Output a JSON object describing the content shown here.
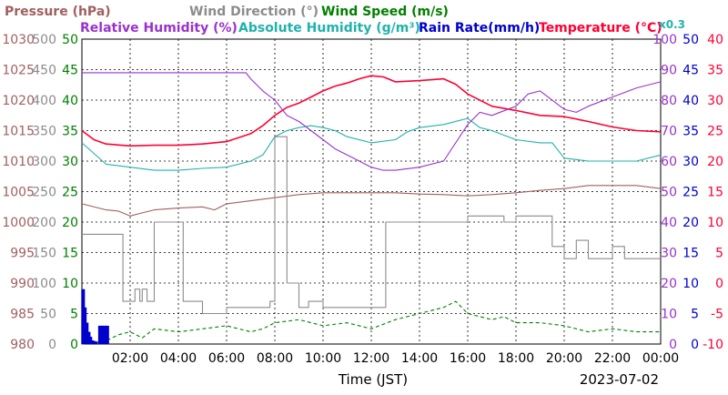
{
  "chart_data": {
    "type": "line",
    "x_axis": {
      "label": "Time (JST)",
      "date": "2023-07-02",
      "ticks": [
        "02:00",
        "04:00",
        "06:00",
        "08:00",
        "10:00",
        "12:00",
        "14:00",
        "16:00",
        "18:00",
        "20:00",
        "22:00",
        "00:00"
      ],
      "range_hours": [
        0,
        24
      ]
    },
    "grid": true,
    "legend": [
      {
        "name": "Pressure (hPa)",
        "color": "#a0605f"
      },
      {
        "name": "Wind Direction (°)",
        "color": "#8c8c8c"
      },
      {
        "name": "Wind Speed (m/s)",
        "color": "#008000"
      },
      {
        "name": "Relative Humidity (%)",
        "color": "#9932cc"
      },
      {
        "name": "Absolute Humidity (g/m³)",
        "color": "#20b2aa"
      },
      {
        "name": "Rain Rate(mm/h)",
        "color": "#0000cd"
      },
      {
        "name": "Temperature (°C)",
        "color": "#ff0033"
      }
    ],
    "rain_scale_note": "x0.3",
    "axes": [
      {
        "id": "pressure",
        "color": "#a0605f",
        "ticks": [
          "980",
          "985",
          "990",
          "995",
          "1000",
          "1005",
          "1010",
          "1015",
          "1020",
          "1025",
          "1030"
        ],
        "range": [
          980,
          1030
        ]
      },
      {
        "id": "wind_direction",
        "color": "#8c8c8c",
        "ticks": [
          "0",
          "50",
          "100",
          "150",
          "200",
          "250",
          "300",
          "350",
          "400",
          "450",
          "500"
        ],
        "range": [
          0,
          500
        ]
      },
      {
        "id": "wind_speed",
        "color": "#008000",
        "ticks": [
          "0",
          "5",
          "10",
          "15",
          "20",
          "25",
          "30",
          "35",
          "40",
          "45",
          "50"
        ],
        "range": [
          0,
          50
        ]
      },
      {
        "id": "relative_humidity",
        "color": "#9932cc",
        "ticks": [
          "0",
          "10",
          "20",
          "30",
          "40",
          "50",
          "60",
          "70",
          "80",
          "90",
          "100"
        ],
        "range": [
          0,
          100
        ]
      },
      {
        "id": "rain_rate",
        "color": "#0000cd",
        "ticks": [
          "0",
          "5",
          "10",
          "15",
          "20",
          "25",
          "30",
          "35",
          "40",
          "45",
          "50"
        ],
        "range": [
          0,
          50
        ]
      },
      {
        "id": "temperature",
        "color": "#ff0033",
        "ticks": [
          "-10",
          "-5",
          "0",
          "5",
          "10",
          "15",
          "20",
          "25",
          "30",
          "35",
          "40"
        ],
        "range": [
          -10,
          40
        ]
      }
    ],
    "series": [
      {
        "name": "Temperature (°C)",
        "axis": "temperature",
        "color": "#ff0033",
        "x": [
          0,
          0.5,
          1,
          2,
          3,
          4,
          5,
          6,
          7,
          7.5,
          8,
          8.5,
          9,
          9.5,
          10,
          10.5,
          11,
          11.5,
          12,
          12.5,
          13,
          14,
          15,
          15.5,
          16,
          17,
          18,
          19,
          20,
          21,
          22,
          23,
          24
        ],
        "y": [
          25,
          23.5,
          22.8,
          22.5,
          22.6,
          22.6,
          22.8,
          23.2,
          24.5,
          25.8,
          27.5,
          28.8,
          29.5,
          30.5,
          31.5,
          32.3,
          32.8,
          33.5,
          34,
          33.8,
          33,
          33.2,
          33.5,
          32.6,
          31,
          29,
          28.3,
          27.5,
          27.3,
          26.5,
          25.6,
          25,
          24.8
        ]
      },
      {
        "name": "Absolute Humidity (g/m³)",
        "axis": "wind_speed",
        "color": "#20b2aa",
        "x": [
          0,
          1,
          2,
          3,
          4,
          5,
          6,
          7,
          7.5,
          8,
          8.5,
          9,
          9.5,
          10,
          10.5,
          11,
          12,
          13,
          13.5,
          14,
          15,
          16,
          16.5,
          17,
          18,
          19,
          19.5,
          20,
          21,
          22,
          23,
          24
        ],
        "y": [
          33,
          29.5,
          29,
          28.5,
          28.5,
          28.8,
          29,
          30,
          31,
          34,
          35,
          35.5,
          35.8,
          35.5,
          35,
          34,
          33,
          33.5,
          34.8,
          35.5,
          36,
          37,
          35.5,
          35,
          33.5,
          33,
          33,
          30.5,
          30,
          30,
          30,
          31
        ]
      },
      {
        "name": "Relative Humidity (%)",
        "axis": "relative_humidity",
        "color": "#9932cc",
        "x": [
          0,
          1,
          2,
          3,
          4,
          5,
          6,
          6.8,
          7,
          7.5,
          8,
          8.5,
          9,
          9.5,
          10,
          10.5,
          11,
          11.5,
          12,
          12.5,
          13,
          14,
          15,
          16,
          16.5,
          17,
          18,
          18.5,
          19,
          20,
          20.5,
          21,
          22,
          23,
          24
        ],
        "y": [
          89,
          89,
          89,
          89,
          89,
          89,
          89,
          89,
          87,
          83,
          80,
          75,
          73,
          70,
          67,
          64,
          62,
          60,
          58,
          57,
          57,
          58,
          60,
          72,
          76,
          75,
          78,
          82,
          83,
          77,
          76,
          78,
          81,
          84,
          86
        ]
      },
      {
        "name": "Pressure (hPa)",
        "axis": "pressure",
        "color": "#a0605f",
        "x": [
          0,
          1,
          1.5,
          2,
          2.5,
          3,
          4,
          5,
          5.5,
          6,
          7,
          8,
          9,
          10,
          11,
          12,
          13,
          14,
          15,
          16,
          17,
          18,
          19,
          20,
          21,
          22,
          23,
          24
        ],
        "y": [
          1003,
          1002,
          1001.8,
          1001,
          1001.5,
          1002,
          1002.3,
          1002.5,
          1002,
          1003,
          1003.5,
          1004,
          1004.5,
          1004.8,
          1004.8,
          1004.8,
          1004.8,
          1004.6,
          1004.5,
          1004.3,
          1004.5,
          1004.8,
          1005.2,
          1005.5,
          1006,
          1006,
          1006,
          1005.5
        ]
      },
      {
        "name": "Wind Direction (°)",
        "axis": "wind_direction",
        "color": "#8c8c8c",
        "step": true,
        "x": [
          0,
          1.5,
          1.7,
          2,
          2.2,
          2.4,
          2.5,
          2.7,
          2.9,
          3,
          3.5,
          4,
          4.2,
          5,
          6,
          7,
          7.5,
          7.8,
          8,
          8.2,
          8.5,
          9,
          9.4,
          10,
          11,
          12,
          12.5,
          12.6,
          13,
          14,
          15,
          16,
          17,
          17.5,
          18,
          19,
          19.5,
          20,
          20.5,
          21,
          22,
          22.5,
          23,
          24
        ],
        "y": [
          180,
          180,
          70,
          70,
          90,
          70,
          90,
          70,
          70,
          200,
          200,
          200,
          70,
          50,
          60,
          60,
          60,
          70,
          340,
          340,
          100,
          60,
          70,
          60,
          60,
          60,
          60,
          200,
          200,
          200,
          200,
          210,
          210,
          200,
          210,
          210,
          160,
          140,
          170,
          140,
          160,
          140,
          140,
          140
        ]
      },
      {
        "name": "Wind Speed (m/s)",
        "axis": "wind_speed",
        "color": "#008000",
        "dashed": true,
        "x": [
          0,
          1,
          1.5,
          2,
          2.5,
          3,
          4,
          5,
          6,
          7,
          7.5,
          8,
          9,
          10,
          11,
          12,
          13,
          14,
          15,
          15.5,
          16,
          17,
          17.5,
          18,
          19,
          20,
          21,
          22,
          23,
          24
        ],
        "y": [
          0,
          0.5,
          1.5,
          2,
          1,
          2.5,
          2,
          2.5,
          3,
          2,
          2.5,
          3.5,
          4,
          3,
          3.5,
          2.5,
          4,
          5,
          6,
          7,
          5,
          4,
          4.5,
          3.5,
          3.5,
          3,
          2,
          2.5,
          2,
          2
        ]
      },
      {
        "name": "Rain Rate(mm/h)",
        "axis": "rain_rate",
        "color": "#0000cd",
        "bars": true,
        "x": [
          0.05,
          0.12,
          0.2,
          0.28,
          0.35,
          0.42,
          0.5,
          0.58,
          0.75,
          0.85,
          0.95,
          1.05
        ],
        "y": [
          9,
          6,
          3.5,
          2,
          1.2,
          0.6,
          0.5,
          0.4,
          3,
          3,
          3,
          3
        ]
      }
    ]
  }
}
